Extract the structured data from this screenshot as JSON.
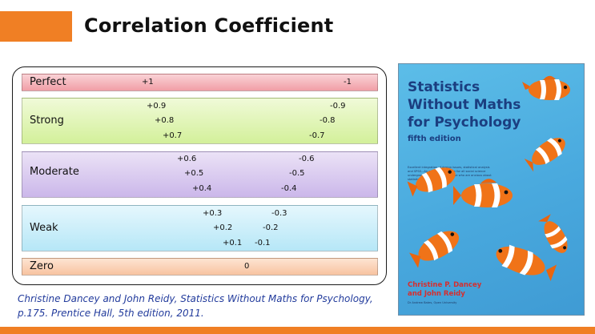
{
  "slide": {
    "title": "Correlation Coefficient",
    "colors": {
      "accent": "#f07f24",
      "citation": "#223b9c"
    }
  },
  "bands": {
    "perfect": {
      "label": "Perfect",
      "pos": [
        "+1"
      ],
      "neg": [
        "-1"
      ]
    },
    "strong": {
      "label": "Strong",
      "pos": [
        "+0.9",
        "+0.8",
        "+0.7"
      ],
      "neg": [
        "-0.9",
        "-0.8",
        "-0.7"
      ]
    },
    "moderate": {
      "label": "Moderate",
      "pos": [
        "+0.6",
        "+0.5",
        "+0.4"
      ],
      "neg": [
        "-0.6",
        "-0.5",
        "-0.4"
      ]
    },
    "weak": {
      "label": "Weak",
      "pos": [
        "+0.3",
        "+0.2",
        "+0.1"
      ],
      "neg": [
        "-0.3",
        "-0.2",
        "-0.1"
      ]
    },
    "zero": {
      "label": "Zero",
      "value": "0"
    }
  },
  "citation": "Christine Dancey and John Reidy, Statistics Without Maths for Psychology, p.175. Prentice Hall, 5th edition, 2011.",
  "book": {
    "title": "Statistics\nWithout Maths\nfor Psychology",
    "edition": "fifth edition",
    "blurb": "Excellent integration of design issues, statistical analysis and SPSS...An essential purchase for all social science undergraduates, particularly those who are anxious about statistics",
    "blurb_source": "Dr Andrew Bates, Open University",
    "authors": "Christine P. Dancey\nand John Reidy",
    "cover_color": "#4aaade",
    "fish_icon": "clownfish-icon"
  }
}
